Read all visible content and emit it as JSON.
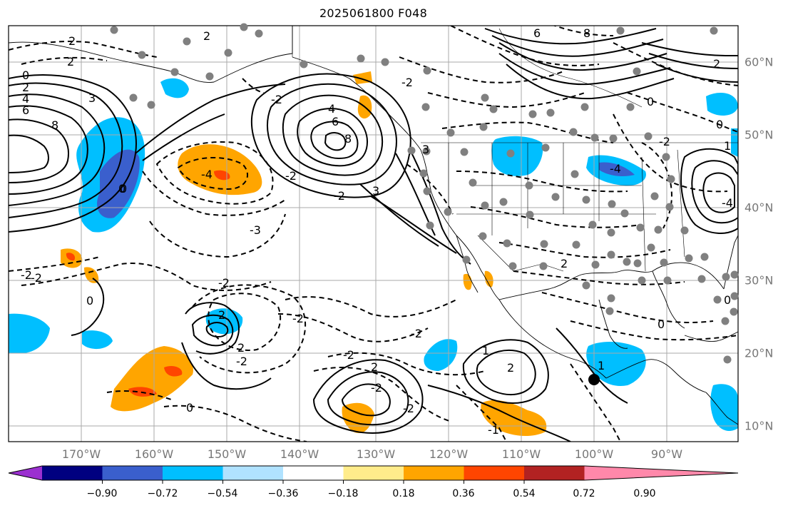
{
  "title": "2025061800 F048",
  "axes": {
    "lon_labels": [
      "170°W",
      "160°W",
      "150°W",
      "140°W",
      "130°W",
      "120°W",
      "110°W",
      "100°W",
      "90°W"
    ],
    "lat_labels": [
      "60°N",
      "50°N",
      "40°N",
      "30°N",
      "20°N",
      "10°N"
    ]
  },
  "colorbar": {
    "tick_labels": [
      "−0.90",
      "−0.72",
      "−0.54",
      "−0.36",
      "−0.18",
      "0.18",
      "0.36",
      "0.54",
      "0.72",
      "0.90"
    ],
    "colors": [
      "#9b30d0",
      "#000080",
      "#3a5fcd",
      "#00bfff",
      "#b0e2ff",
      "#ffffff",
      "#ffec8b",
      "#ffa500",
      "#ff4500",
      "#b22222",
      "#ff88aa"
    ]
  },
  "contour_labels": [
    "2",
    "2",
    "2",
    "0",
    "2",
    "4",
    "6",
    "3",
    "8",
    "0",
    "-2",
    "-2",
    "3",
    "-4",
    "-2",
    "-3",
    "-2",
    "4",
    "6",
    "8",
    "0",
    "3",
    "-4",
    "6",
    "8",
    "0",
    "-2",
    "2",
    "0",
    "-2",
    "0",
    "-2",
    "2",
    "-2",
    "-2",
    "2",
    "-2",
    "-2",
    "2",
    "0",
    "-2",
    "1",
    "2",
    "2",
    "0",
    "0",
    "-4",
    "-2",
    "-2",
    "1",
    "-1",
    "1"
  ]
}
